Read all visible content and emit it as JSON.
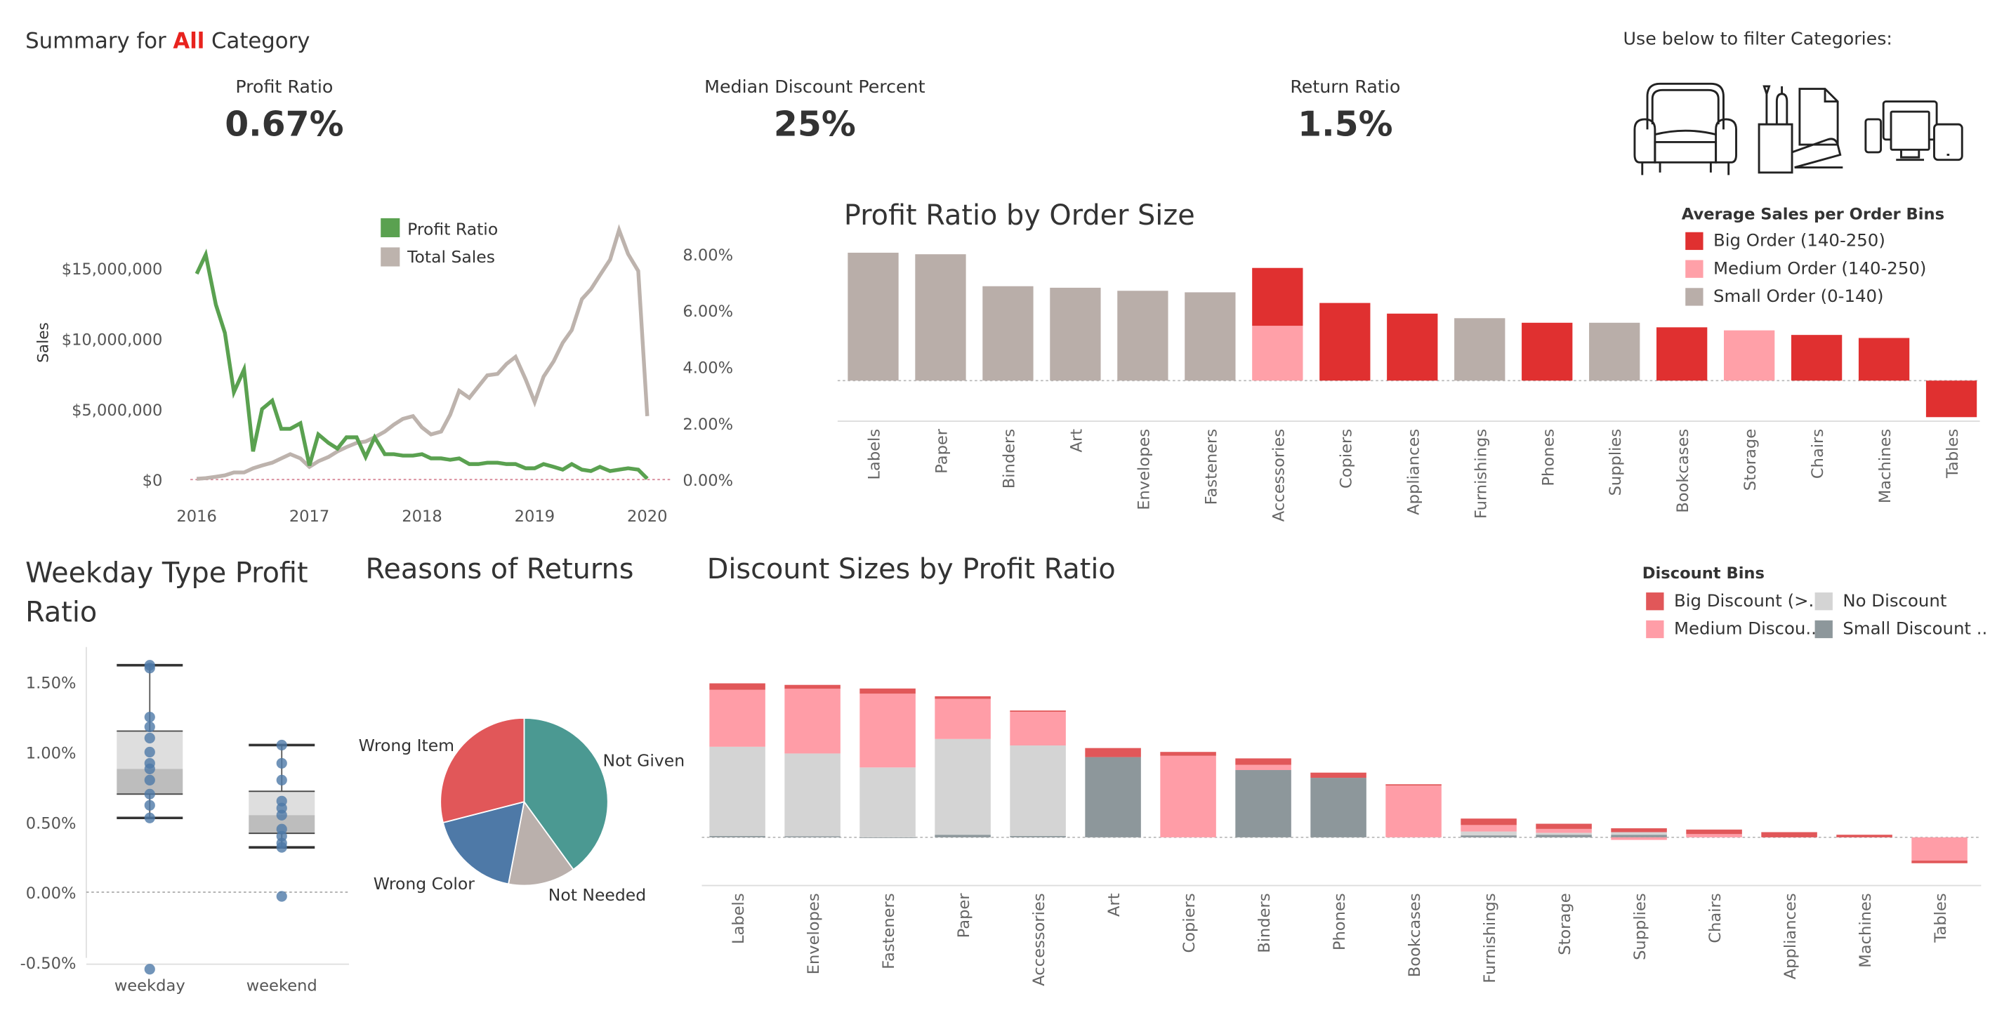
{
  "header": {
    "prefix": "Summary for ",
    "category": "All",
    "suffix": " Category",
    "accent": "#e8231e"
  },
  "kpis": [
    {
      "label": "Profit Ratio",
      "value": "0.67%"
    },
    {
      "label": "Median Discount Percent",
      "value": "25%"
    },
    {
      "label": "Return Ratio",
      "value": "1.5%"
    }
  ],
  "filter": {
    "label": "Use below to filter Categories:",
    "icons": [
      "armchair-icon",
      "office-supplies-icon",
      "devices-icon"
    ]
  },
  "colors": {
    "big": "#e03030",
    "medium": "#ffa0a8",
    "small": "#b9aea9",
    "green": "#5aa150",
    "sales": "#bdb3ad",
    "big_disc": "#e15759",
    "med_disc": "#ff9da7",
    "no_disc": "#d4d4d4",
    "small_disc": "#8d979b",
    "box_dot": "#4e79a7"
  },
  "chart_data": [
    {
      "type": "line",
      "title": "",
      "ylabel": "Sales",
      "x_ticks": [
        "2016",
        "2017",
        "2018",
        "2019",
        "2020"
      ],
      "y_left_ticks": [
        "$0",
        "$5,000,000",
        "$10,000,000",
        "$15,000,000"
      ],
      "y_right_ticks": [
        "0.00%",
        "2.00%",
        "4.00%",
        "6.00%",
        "8.00%"
      ],
      "ylim_left": [
        0,
        18000000
      ],
      "ylim_right": [
        0,
        0.09
      ],
      "legend": [
        "Profit Ratio",
        "Total Sales"
      ],
      "x": [
        2016.0,
        2016.08,
        2016.17,
        2016.25,
        2016.33,
        2016.42,
        2016.5,
        2016.58,
        2016.67,
        2016.75,
        2016.83,
        2016.92,
        2017.0,
        2017.08,
        2017.17,
        2017.25,
        2017.33,
        2017.42,
        2017.5,
        2017.58,
        2017.67,
        2017.75,
        2017.83,
        2017.92,
        2018.0,
        2018.08,
        2018.17,
        2018.25,
        2018.33,
        2018.42,
        2018.5,
        2018.58,
        2018.67,
        2018.75,
        2018.83,
        2018.92,
        2019.0,
        2019.08,
        2019.17,
        2019.25,
        2019.33,
        2019.42,
        2019.5,
        2019.58,
        2019.67,
        2019.75,
        2019.83,
        2019.92,
        2020.0
      ],
      "series": [
        {
          "name": "Total Sales",
          "axis": "left",
          "values": [
            50000,
            100000,
            200000,
            300000,
            500000,
            500000,
            800000,
            1000000,
            1200000,
            1500000,
            1800000,
            1500000,
            900000,
            1300000,
            1600000,
            2000000,
            2300000,
            2600000,
            2700000,
            3000000,
            3400000,
            3900000,
            4300000,
            4500000,
            3700000,
            3200000,
            3400000,
            4600000,
            6300000,
            5800000,
            6600000,
            7400000,
            7500000,
            8200000,
            8700000,
            7100000,
            5500000,
            7300000,
            8400000,
            9700000,
            10600000,
            12800000,
            13500000,
            14500000,
            15600000,
            17700000,
            16000000,
            14800000,
            4500000
          ]
        },
        {
          "name": "Profit Ratio",
          "axis": "right",
          "values": [
            0.073,
            0.0798,
            0.062,
            0.052,
            0.031,
            0.039,
            0.01,
            0.025,
            0.028,
            0.018,
            0.018,
            0.02,
            0.005,
            0.016,
            0.013,
            0.011,
            0.015,
            0.015,
            0.008,
            0.015,
            0.009,
            0.009,
            0.0085,
            0.0085,
            0.009,
            0.0075,
            0.0075,
            0.007,
            0.0075,
            0.0055,
            0.0055,
            0.006,
            0.006,
            0.0055,
            0.0055,
            0.004,
            0.004,
            0.0055,
            0.0045,
            0.0035,
            0.0055,
            0.0035,
            0.003,
            0.0045,
            0.003,
            0.0035,
            0.004,
            0.0035,
            0.0003
          ]
        }
      ]
    },
    {
      "type": "bar",
      "title": "Profit Ratio by Order Size",
      "legend_title": "Average Sales per Order Bins",
      "legend": [
        "Big Order (140-250)",
        "Medium Order (140-250)",
        "Small Order (0-140)"
      ],
      "categories": [
        "Labels",
        "Paper",
        "Binders",
        "Art",
        "Envelopes",
        "Fasteners",
        "Accessories",
        "Copiers",
        "Appliances",
        "Furnishings",
        "Phones",
        "Supplies",
        "Bookcases",
        "Storage",
        "Chairs",
        "Machines",
        "Tables"
      ],
      "series": [
        {
          "name": "Small Order (0-140)",
          "values": [
            0.42,
            0.415,
            0.31,
            0.305,
            0.295,
            0.29,
            0,
            0,
            0,
            0.205,
            0,
            0.19,
            0,
            0,
            0,
            0,
            0
          ]
        },
        {
          "name": "Medium Order (140-250)",
          "values": [
            0,
            0,
            0,
            0,
            0,
            0,
            0.18,
            0,
            0,
            0,
            0,
            0,
            0,
            0.165,
            0,
            0,
            0
          ]
        },
        {
          "name": "Big Order (140-250)",
          "values": [
            0,
            0,
            0,
            0,
            0,
            0,
            0.19,
            0.255,
            0.22,
            0,
            0.19,
            0,
            0.175,
            0,
            0.15,
            0.14,
            -0.12
          ]
        }
      ]
    },
    {
      "type": "scatter",
      "title": "Weekday Type Profit Ratio",
      "categories": [
        "weekday",
        "weekend"
      ],
      "y_ticks": [
        "-0.50%",
        "0.00%",
        "0.50%",
        "1.00%",
        "1.50%"
      ],
      "ylim": [
        -0.0065,
        0.0175
      ],
      "points": {
        "weekday": [
          0.0162,
          0.016,
          0.0125,
          0.0118,
          0.011,
          0.01,
          0.0092,
          0.0088,
          0.008,
          0.007,
          0.0062,
          0.0053,
          -0.0055
        ],
        "weekend": [
          0.0105,
          0.0092,
          0.008,
          0.0065,
          0.006,
          0.0055,
          0.0045,
          0.004,
          0.0035,
          0.0032,
          -0.0003
        ]
      },
      "box": {
        "weekday": {
          "min": 0.0053,
          "q1": 0.007,
          "median": 0.0088,
          "q3": 0.0115,
          "max": 0.0162
        },
        "weekend": {
          "min": 0.0032,
          "q1": 0.0042,
          "median": 0.0055,
          "q3": 0.0072,
          "max": 0.0105
        }
      }
    },
    {
      "type": "pie",
      "title": "Reasons of Returns",
      "labels": [
        "Not Given",
        "Not Needed",
        "Wrong Color",
        "Wrong Item"
      ],
      "values": [
        40,
        13,
        18,
        29
      ],
      "colors": [
        "#4b9992",
        "#bab0ac",
        "#4e79a7",
        "#e15759"
      ]
    },
    {
      "type": "bar",
      "title": "Discount Sizes by Profit Ratio",
      "legend_title": "Discount Bins",
      "legend": [
        "Big Discount (>..",
        "No Discount",
        "Medium Discou..",
        "Small Discount .."
      ],
      "categories": [
        "Labels",
        "Envelopes",
        "Fasteners",
        "Paper",
        "Accessories",
        "Art",
        "Copiers",
        "Binders",
        "Phones",
        "Bookcases",
        "Furnishings",
        "Storage",
        "Supplies",
        "Chairs",
        "Appliances",
        "Machines",
        "Tables"
      ],
      "series": [
        {
          "name": "Small Discount ..",
          "values": [
            0.01,
            0.008,
            -0.005,
            0.02,
            0.01,
            0.62,
            0,
            0.52,
            0.46,
            0,
            0.015,
            0.02,
            0.02,
            0,
            0,
            0,
            0
          ]
        },
        {
          "name": "No Discount",
          "values": [
            0.69,
            0.64,
            0.54,
            0.74,
            0.7,
            0,
            0,
            0,
            0,
            0,
            0.03,
            0.015,
            0.02,
            0,
            0,
            0,
            0
          ]
        },
        {
          "name": "Medium Discou..",
          "values": [
            0.44,
            0.5,
            0.57,
            0.31,
            0.26,
            0,
            0.63,
            0.04,
            0,
            0.4,
            0.05,
            0.03,
            -0.02,
            0.025,
            0,
            0,
            -0.18
          ]
        },
        {
          "name": "Big Discount (>..",
          "values": [
            0.05,
            0.03,
            0.04,
            0.02,
            0.01,
            0.07,
            0.03,
            0.05,
            0.04,
            0.01,
            0.05,
            0.04,
            0.03,
            0.035,
            0.04,
            0.02,
            -0.02
          ]
        }
      ]
    }
  ]
}
